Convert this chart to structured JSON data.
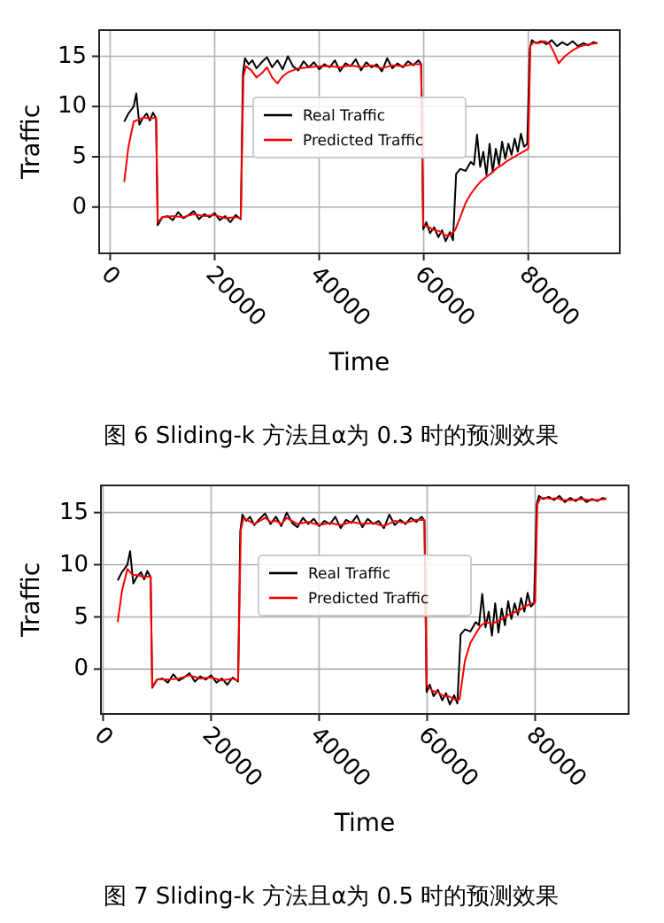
{
  "chart_data": [
    {
      "type": "line",
      "xlabel": "Time",
      "ylabel": "Traffic",
      "xlim": [
        -2100,
        97500
      ],
      "ylim": [
        -4.6,
        17.6
      ],
      "xticks": [
        0,
        20000,
        40000,
        60000,
        80000
      ],
      "yticks": [
        0,
        5,
        10,
        15
      ],
      "grid": true,
      "legend": "center",
      "annotations": [
        "图 6 Sliding-k 方法且α为 0.3 时的预测效果"
      ],
      "series": [
        {
          "name": "Real Traffic",
          "color": "#000000",
          "x": [
            2700,
            3500,
            4500,
            5000,
            5600,
            6200,
            7000,
            7600,
            8200,
            8800,
            9100,
            10000,
            11000,
            12000,
            13000,
            14000,
            15000,
            16000,
            17000,
            18000,
            19000,
            20000,
            21000,
            22000,
            23000,
            24000,
            25000,
            25400,
            25800,
            26500,
            27200,
            28000,
            29000,
            30000,
            31000,
            32000,
            33000,
            34000,
            35000,
            36000,
            37000,
            38000,
            39000,
            40000,
            41000,
            42000,
            43000,
            44000,
            45000,
            46000,
            47000,
            48000,
            49000,
            50000,
            51000,
            52000,
            53000,
            54000,
            55000,
            56000,
            57000,
            58000,
            59000,
            59500,
            59900,
            60500,
            61200,
            62000,
            62800,
            63500,
            64200,
            65000,
            65600,
            66200,
            67000,
            68000,
            69000,
            69600,
            70200,
            70800,
            71400,
            72000,
            72600,
            73200,
            73800,
            74400,
            75000,
            75600,
            76200,
            76800,
            77400,
            78000,
            78600,
            79200,
            79800,
            80300,
            80700,
            81500,
            82500,
            83500,
            84500,
            85500,
            86500,
            87500,
            88500,
            89500,
            90500,
            91500,
            92500,
            93200
          ],
          "values": [
            8.5,
            9.3,
            10,
            11.3,
            8.2,
            8.8,
            9.3,
            8.6,
            9.4,
            8.8,
            -1.8,
            -1,
            -0.9,
            -1.3,
            -0.5,
            -1.1,
            -0.8,
            -0.4,
            -1.2,
            -0.7,
            -1,
            -0.6,
            -1.3,
            -0.9,
            -1.5,
            -0.8,
            -1.2,
            13.2,
            14.8,
            14.2,
            14.6,
            13.8,
            14.4,
            14.9,
            13.9,
            14.6,
            13.7,
            15,
            14,
            13.6,
            14.5,
            13.9,
            14.4,
            13.7,
            14.2,
            13.9,
            14.6,
            13.5,
            14.3,
            14,
            14.7,
            13.6,
            14.4,
            13.9,
            14.2,
            13.5,
            14.8,
            13.8,
            14.3,
            13.9,
            14.5,
            14.1,
            14.6,
            14.2,
            -2.2,
            -1.5,
            -2.6,
            -2,
            -3,
            -2.3,
            -3.4,
            -2.5,
            -3.3,
            3.3,
            3.8,
            3.6,
            4.5,
            4.2,
            7.2,
            4,
            5.5,
            3.2,
            6.3,
            3.5,
            5.8,
            4.2,
            6.5,
            4.8,
            6.3,
            5.2,
            6.8,
            5.5,
            7.3,
            6,
            6.3,
            15.8,
            16.6,
            16.3,
            16.5,
            16.2,
            16.6,
            16,
            16.4,
            16.1,
            16.5,
            16,
            16.3,
            16.1,
            16.4,
            16.3
          ]
        },
        {
          "name": "Predicted Traffic",
          "color": "#ff0000",
          "x": [
            2700,
            3500,
            4500,
            5500,
            6500,
            7500,
            8800,
            9100,
            10000,
            12000,
            14000,
            16000,
            18000,
            20000,
            22000,
            24000,
            25000,
            25500,
            26000,
            27000,
            28000,
            29000,
            30000,
            31000,
            32000,
            33000,
            34000,
            36000,
            38000,
            40000,
            42000,
            44000,
            46000,
            48000,
            50000,
            52000,
            54000,
            56000,
            58000,
            59500,
            59900,
            61000,
            62000,
            63000,
            64000,
            65000,
            66000,
            67000,
            68000,
            69000,
            70000,
            71000,
            72000,
            73000,
            74000,
            75000,
            76000,
            77000,
            78000,
            79000,
            80000,
            80400,
            81000,
            82000,
            83000,
            84000,
            85000,
            85800,
            87000,
            88500,
            90000,
            91500,
            93200
          ],
          "values": [
            2.5,
            6,
            8.5,
            8.7,
            8.9,
            8.8,
            8.9,
            -1.5,
            -1,
            -0.9,
            -1,
            -0.7,
            -0.9,
            -0.8,
            -1.1,
            -1,
            -1.1,
            13,
            14,
            13.6,
            12.9,
            13.3,
            13.9,
            12.9,
            12.3,
            13,
            13.4,
            13.8,
            13.9,
            14,
            14,
            13.9,
            14.1,
            13.9,
            14.1,
            13.8,
            14.1,
            14,
            14.2,
            14.2,
            -1.8,
            -2,
            -2.3,
            -2.4,
            -2.8,
            -2.8,
            -2.3,
            -1,
            0.4,
            1.3,
            2,
            2.6,
            3,
            3.4,
            3.9,
            4.2,
            4.6,
            4.9,
            5.2,
            5.5,
            5.8,
            16,
            16.4,
            16.3,
            16.5,
            16.3,
            15.3,
            14.3,
            15,
            15.6,
            16,
            16.2,
            16.3
          ]
        }
      ]
    },
    {
      "type": "line",
      "xlabel": "Time",
      "ylabel": "Traffic",
      "xlim": [
        -400,
        97300
      ],
      "ylim": [
        -4.3,
        17.6
      ],
      "xticks": [
        0,
        20000,
        40000,
        60000,
        80000
      ],
      "yticks": [
        0,
        5,
        10,
        15
      ],
      "grid": true,
      "legend": "center",
      "annotations": [
        "图 7 Sliding-k 方法且α为 0.5 时的预测效果"
      ],
      "series": [
        {
          "name": "Real Traffic",
          "color": "#000000",
          "x": [
            2700,
            3500,
            4500,
            5000,
            5600,
            6200,
            7000,
            7600,
            8200,
            8800,
            9100,
            10000,
            11000,
            12000,
            13000,
            14000,
            15000,
            16000,
            17000,
            18000,
            19000,
            20000,
            21000,
            22000,
            23000,
            24000,
            25000,
            25400,
            25800,
            26500,
            27200,
            28000,
            29000,
            30000,
            31000,
            32000,
            33000,
            34000,
            35000,
            36000,
            37000,
            38000,
            39000,
            40000,
            41000,
            42000,
            43000,
            44000,
            45000,
            46000,
            47000,
            48000,
            49000,
            50000,
            51000,
            52000,
            53000,
            54000,
            55000,
            56000,
            57000,
            58000,
            59000,
            59500,
            59900,
            60500,
            61200,
            62000,
            62800,
            63500,
            64200,
            65000,
            65600,
            66200,
            67000,
            68000,
            69000,
            69600,
            70200,
            70800,
            71400,
            72000,
            72600,
            73200,
            73800,
            74400,
            75000,
            75600,
            76200,
            76800,
            77400,
            78000,
            78600,
            79200,
            79800,
            80300,
            80700,
            81500,
            82500,
            83500,
            84500,
            85500,
            86500,
            87500,
            88500,
            89500,
            90500,
            91500,
            92500,
            93200
          ],
          "values": [
            8.5,
            9.3,
            10,
            11.3,
            8.2,
            8.8,
            9.3,
            8.6,
            9.4,
            8.8,
            -1.8,
            -1,
            -0.9,
            -1.3,
            -0.5,
            -1.1,
            -0.8,
            -0.4,
            -1.2,
            -0.7,
            -1,
            -0.6,
            -1.3,
            -0.9,
            -1.5,
            -0.8,
            -1.2,
            13.2,
            14.8,
            14.2,
            14.6,
            13.8,
            14.4,
            14.9,
            13.9,
            14.6,
            13.7,
            15,
            14,
            13.6,
            14.5,
            13.9,
            14.4,
            13.7,
            14.2,
            13.9,
            14.6,
            13.5,
            14.3,
            14,
            14.7,
            13.6,
            14.4,
            13.9,
            14.2,
            13.5,
            14.8,
            13.8,
            14.3,
            13.9,
            14.5,
            14.1,
            14.6,
            14.2,
            -2.2,
            -1.5,
            -2.6,
            -2,
            -3,
            -2.3,
            -3.4,
            -2.5,
            -3.3,
            3.3,
            3.8,
            3.6,
            4.5,
            4.2,
            7.2,
            4,
            5.5,
            3.2,
            6.3,
            3.5,
            5.8,
            4.2,
            6.5,
            4.8,
            6.3,
            5.2,
            6.8,
            5.5,
            7.3,
            6,
            6.3,
            15.8,
            16.6,
            16.3,
            16.5,
            16.2,
            16.6,
            16,
            16.4,
            16.1,
            16.5,
            16,
            16.3,
            16.1,
            16.4,
            16.3
          ]
        },
        {
          "name": "Predicted Traffic",
          "color": "#ff0000",
          "x": [
            2700,
            3500,
            4500,
            5500,
            6500,
            7500,
            8800,
            9100,
            10000,
            12000,
            14000,
            16000,
            18000,
            20000,
            22000,
            24000,
            25000,
            25500,
            26000,
            27000,
            28000,
            29000,
            30000,
            31000,
            32000,
            33000,
            34000,
            36000,
            38000,
            40000,
            42000,
            44000,
            46000,
            48000,
            50000,
            52000,
            54000,
            56000,
            58000,
            59500,
            59900,
            61000,
            62000,
            63000,
            64000,
            65000,
            66000,
            67000,
            68000,
            69000,
            70000,
            71000,
            72000,
            73000,
            74000,
            75000,
            76000,
            77000,
            78000,
            79000,
            80000,
            80400,
            81000,
            82000,
            83000,
            84000,
            85000,
            85800,
            87000,
            88500,
            90000,
            91500,
            93200
          ],
          "values": [
            4.5,
            7.5,
            9.6,
            9,
            9,
            8.8,
            8.9,
            -1.7,
            -1,
            -1,
            -0.9,
            -0.6,
            -0.9,
            -0.8,
            -1.1,
            -0.9,
            -1.1,
            13.3,
            14.5,
            14.2,
            13.9,
            14.2,
            14.5,
            14.1,
            14.2,
            13.9,
            14.5,
            13.9,
            14.1,
            13.8,
            14,
            13.8,
            14.1,
            13.9,
            14,
            13.7,
            14.2,
            14,
            14.3,
            14.3,
            -1.5,
            -2.1,
            -2.2,
            -2.6,
            -2.6,
            -2.9,
            -2.9,
            0.8,
            2.5,
            3.4,
            4.2,
            4.5,
            4.3,
            4.6,
            4.8,
            5.2,
            5.4,
            5.6,
            6,
            6.2,
            6.4,
            15.8,
            16.4,
            16.4,
            16.3,
            16.4,
            16.2,
            16.2,
            16.2,
            16.3,
            16.2,
            16.2,
            16.3
          ]
        }
      ]
    }
  ]
}
